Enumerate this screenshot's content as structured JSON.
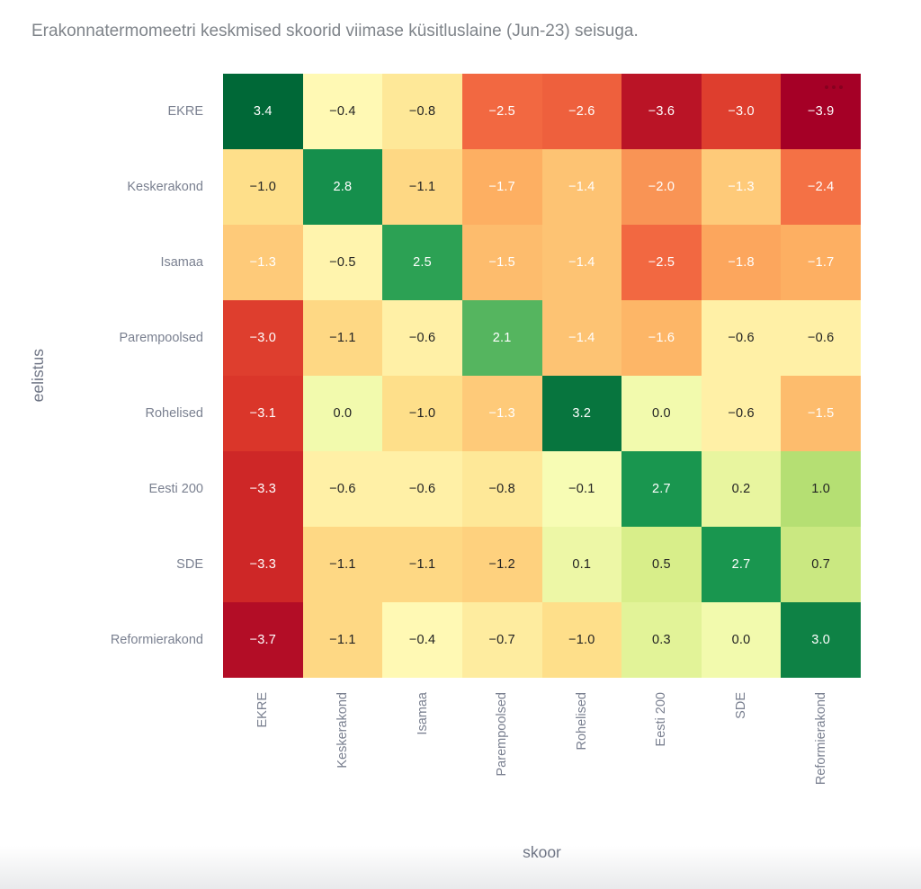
{
  "title": "Erakonnatermomeetri keskmised skoorid viimase küsitluslaine (Jun-23) seisuga.",
  "chart_data": {
    "type": "heatmap",
    "title": "Erakonnatermomeetri keskmised skoorid viimase küsitluslaine (Jun-23) seisuga.",
    "xlabel": "skoor",
    "ylabel": "eelistus",
    "x_categories": [
      "EKRE",
      "Keskerakond",
      "Isamaa",
      "Parempoolsed",
      "Rohelised",
      "Eesti 200",
      "SDE",
      "Reformierakond"
    ],
    "y_categories": [
      "EKRE",
      "Keskerakond",
      "Isamaa",
      "Parempoolsed",
      "Rohelised",
      "Eesti 200",
      "SDE",
      "Reformierakond"
    ],
    "values": [
      [
        3.4,
        -0.4,
        -0.8,
        -2.5,
        -2.6,
        -3.6,
        -3.0,
        -3.9
      ],
      [
        -1.0,
        2.8,
        -1.1,
        -1.7,
        -1.4,
        -2.0,
        -1.3,
        -2.4
      ],
      [
        -1.3,
        -0.5,
        2.5,
        -1.5,
        -1.4,
        -2.5,
        -1.8,
        -1.7
      ],
      [
        -3.0,
        -1.1,
        -0.6,
        2.1,
        -1.4,
        -1.6,
        -0.6,
        -0.6
      ],
      [
        -3.1,
        0.0,
        -1.0,
        -1.3,
        3.2,
        0.0,
        -0.6,
        -1.5
      ],
      [
        -3.3,
        -0.6,
        -0.6,
        -0.8,
        -0.1,
        2.7,
        0.2,
        1.0
      ],
      [
        -3.3,
        -1.1,
        -1.1,
        -1.2,
        0.1,
        0.5,
        2.7,
        0.7
      ],
      [
        -3.7,
        -1.1,
        -0.4,
        -0.7,
        -1.0,
        0.3,
        0.0,
        3.0
      ]
    ],
    "value_decimals": 1,
    "colorscale": {
      "name": "RdYlGn",
      "stops": [
        "#a50026",
        "#d73027",
        "#f46d43",
        "#fdae61",
        "#fee08b",
        "#ffffbf",
        "#d9ef8b",
        "#a6d96a",
        "#66bd63",
        "#1a9850",
        "#006837"
      ],
      "domain": [
        -3.9,
        3.4
      ]
    },
    "cell_text": {
      "dark_color": "#222222",
      "light_color": "#ffffff",
      "light_if_at_most": -1.3,
      "light_if_at_least": 2.1
    },
    "legend": "none",
    "grid": "off"
  },
  "colors": {
    "background": "#ffffff",
    "title_text": "#7f848a",
    "tick_label": "#7a8090",
    "axis_title": "#6f7585",
    "bottom_fade": "#e9eaec"
  },
  "icons": {
    "more_options": "ellipsis-icon"
  }
}
